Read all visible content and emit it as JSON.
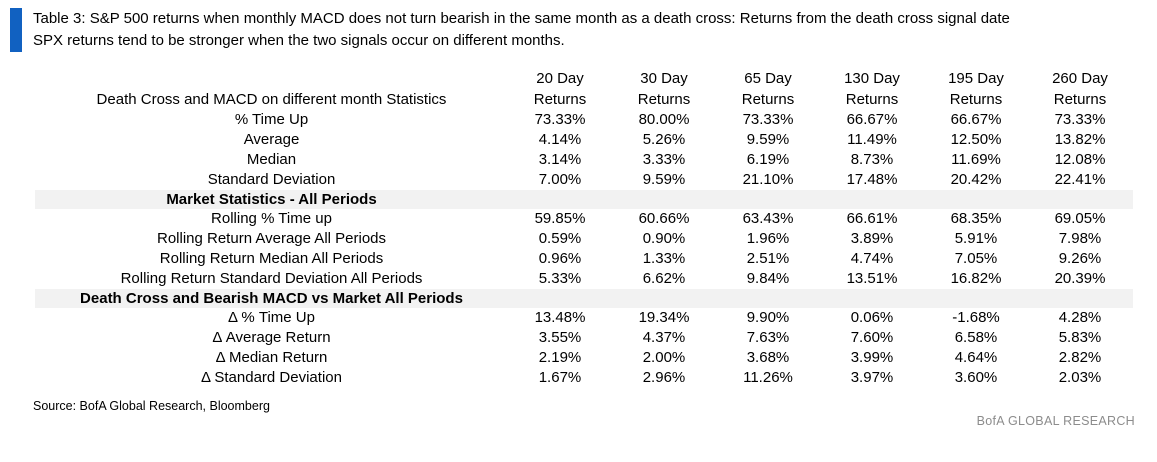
{
  "title": {
    "line1": "Table 3: S&P 500 returns when monthly MACD does not turn bearish in the same month as a death cross: Returns from the death cross signal date",
    "line2": "SPX returns tend to be stronger when the two signals occur on different months."
  },
  "table": {
    "corner_header": "Death Cross and MACD on different month Statistics",
    "columns": [
      {
        "top": "20 Day",
        "bottom": "Returns"
      },
      {
        "top": "30 Day",
        "bottom": "Returns"
      },
      {
        "top": "65 Day",
        "bottom": "Returns"
      },
      {
        "top": "130 Day",
        "bottom": "Returns"
      },
      {
        "top": "195 Day",
        "bottom": "Returns"
      },
      {
        "top": "260 Day",
        "bottom": "Returns"
      }
    ],
    "sections": [
      {
        "kind": "rows",
        "rows": [
          {
            "label": "% Time Up",
            "values": [
              "73.33%",
              "80.00%",
              "73.33%",
              "66.67%",
              "66.67%",
              "73.33%"
            ]
          },
          {
            "label": "Average",
            "values": [
              "4.14%",
              "5.26%",
              "9.59%",
              "11.49%",
              "12.50%",
              "13.82%"
            ]
          },
          {
            "label": "Median",
            "values": [
              "3.14%",
              "3.33%",
              "6.19%",
              "8.73%",
              "11.69%",
              "12.08%"
            ]
          },
          {
            "label": "Standard Deviation",
            "values": [
              "7.00%",
              "9.59%",
              "21.10%",
              "17.48%",
              "20.42%",
              "22.41%"
            ]
          }
        ]
      },
      {
        "kind": "band",
        "label": "Market Statistics - All Periods"
      },
      {
        "kind": "rows",
        "rows": [
          {
            "label": "Rolling % Time up",
            "values": [
              "59.85%",
              "60.66%",
              "63.43%",
              "66.61%",
              "68.35%",
              "69.05%"
            ]
          },
          {
            "label": "Rolling Return Average All Periods",
            "values": [
              "0.59%",
              "0.90%",
              "1.96%",
              "3.89%",
              "5.91%",
              "7.98%"
            ]
          },
          {
            "label": "Rolling Return Median All Periods",
            "values": [
              "0.96%",
              "1.33%",
              "2.51%",
              "4.74%",
              "7.05%",
              "9.26%"
            ]
          },
          {
            "label": "Rolling Return Standard Deviation All Periods",
            "values": [
              "5.33%",
              "6.62%",
              "9.84%",
              "13.51%",
              "16.82%",
              "20.39%"
            ]
          }
        ]
      },
      {
        "kind": "band",
        "label": "Death Cross and Bearish MACD vs Market All Periods"
      },
      {
        "kind": "rows",
        "rows": [
          {
            "label": "Δ % Time Up",
            "values": [
              "13.48%",
              "19.34%",
              "9.90%",
              "0.06%",
              "-1.68%",
              "4.28%"
            ]
          },
          {
            "label": "Δ Average Return",
            "values": [
              "3.55%",
              "4.37%",
              "7.63%",
              "7.60%",
              "6.58%",
              "5.83%"
            ]
          },
          {
            "label": "Δ Median Return",
            "values": [
              "2.19%",
              "2.00%",
              "3.68%",
              "3.99%",
              "4.64%",
              "2.82%"
            ]
          },
          {
            "label": "Δ Standard Deviation",
            "values": [
              "1.67%",
              "2.96%",
              "11.26%",
              "3.97%",
              "3.60%",
              "2.03%"
            ]
          }
        ]
      }
    ]
  },
  "footer": {
    "source": "Source: BofA Global Research, Bloomberg",
    "brand": "BofA GLOBAL RESEARCH"
  },
  "colors": {
    "accent_blue": "#1161c1",
    "band_gray": "#f2f2f2",
    "brand_gray": "#8c8c8c"
  },
  "chart_data": {
    "type": "table",
    "title": "Table 3: S&P 500 returns when monthly MACD does not turn bearish in the same month as a death cross: Returns from the death cross signal date SPX returns tend to be stronger when the two signals occur on different months.",
    "columns": [
      "20 Day Returns",
      "30 Day Returns",
      "65 Day Returns",
      "130 Day Returns",
      "195 Day Returns",
      "260 Day Returns"
    ],
    "units": "percent",
    "sections": [
      {
        "section": "Death Cross and MACD on different month Statistics",
        "rows": [
          {
            "label": "% Time Up",
            "values": [
              73.33,
              80.0,
              73.33,
              66.67,
              66.67,
              73.33
            ]
          },
          {
            "label": "Average",
            "values": [
              4.14,
              5.26,
              9.59,
              11.49,
              12.5,
              13.82
            ]
          },
          {
            "label": "Median",
            "values": [
              3.14,
              3.33,
              6.19,
              8.73,
              11.69,
              12.08
            ]
          },
          {
            "label": "Standard Deviation",
            "values": [
              7.0,
              9.59,
              21.1,
              17.48,
              20.42,
              22.41
            ]
          }
        ]
      },
      {
        "section": "Market Statistics - All Periods",
        "rows": [
          {
            "label": "Rolling % Time up",
            "values": [
              59.85,
              60.66,
              63.43,
              66.61,
              68.35,
              69.05
            ]
          },
          {
            "label": "Rolling Return Average All Periods",
            "values": [
              0.59,
              0.9,
              1.96,
              3.89,
              5.91,
              7.98
            ]
          },
          {
            "label": "Rolling Return Median All Periods",
            "values": [
              0.96,
              1.33,
              2.51,
              4.74,
              7.05,
              9.26
            ]
          },
          {
            "label": "Rolling Return Standard Deviation All Periods",
            "values": [
              5.33,
              6.62,
              9.84,
              13.51,
              16.82,
              20.39
            ]
          }
        ]
      },
      {
        "section": "Death Cross and Bearish MACD vs Market All Periods",
        "rows": [
          {
            "label": "Δ % Time Up",
            "values": [
              13.48,
              19.34,
              9.9,
              0.06,
              -1.68,
              4.28
            ]
          },
          {
            "label": "Δ Average Return",
            "values": [
              3.55,
              4.37,
              7.63,
              7.6,
              6.58,
              5.83
            ]
          },
          {
            "label": "Δ Median Return",
            "values": [
              2.19,
              2.0,
              3.68,
              3.99,
              4.64,
              2.82
            ]
          },
          {
            "label": "Δ Standard Deviation",
            "values": [
              1.67,
              2.96,
              11.26,
              3.97,
              3.6,
              2.03
            ]
          }
        ]
      }
    ],
    "source": "Source: BofA Global Research, Bloomberg"
  }
}
